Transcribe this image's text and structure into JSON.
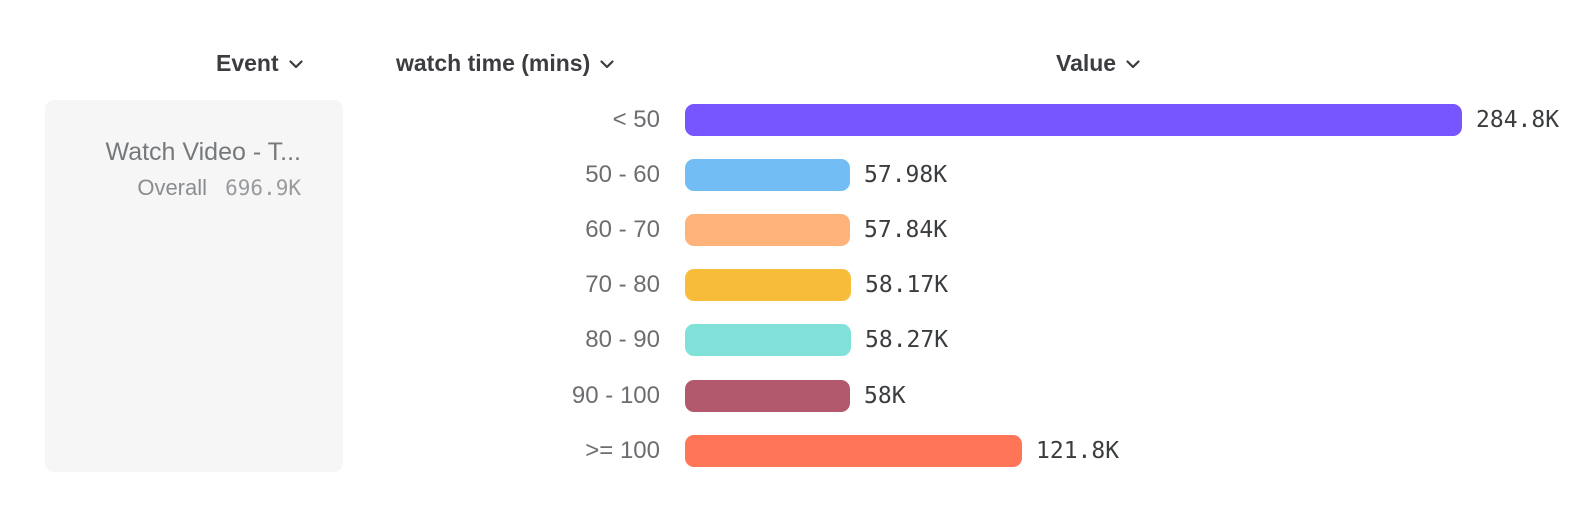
{
  "header": {
    "event_label": "Event",
    "watch_time_label": "watch time (mins)",
    "value_label": "Value"
  },
  "event_card": {
    "title": "Watch Video - T...",
    "overall_label": "Overall",
    "overall_value": "696.9K"
  },
  "chart_data": {
    "type": "bar",
    "orientation": "horizontal",
    "title": "",
    "xlabel": "Value",
    "ylabel": "watch time (mins)",
    "categories": [
      "< 50",
      "50 - 60",
      "60 - 70",
      "70 - 80",
      "80 - 90",
      "90 - 100",
      ">= 100"
    ],
    "values": [
      284800,
      57980,
      57840,
      58170,
      58270,
      58000,
      121800
    ],
    "value_labels": [
      "284.8K",
      "57.98K",
      "57.84K",
      "58.17K",
      "58.27K",
      "58K",
      "121.8K"
    ],
    "bar_colors": [
      "#7856FF",
      "#72BEF4",
      "#FFB27A",
      "#F8BC3B",
      "#80E1D9",
      "#B2596E",
      "#FF7557"
    ],
    "xlim": [
      0,
      284800
    ],
    "grid": false,
    "legend": "none"
  },
  "colors": {
    "card_bg": "#F6F6F6",
    "header_text": "#3B3D40",
    "bucket_label_text": "#6B6E71",
    "value_text": "#3A3D40",
    "muted_text": "#8A8D90"
  }
}
